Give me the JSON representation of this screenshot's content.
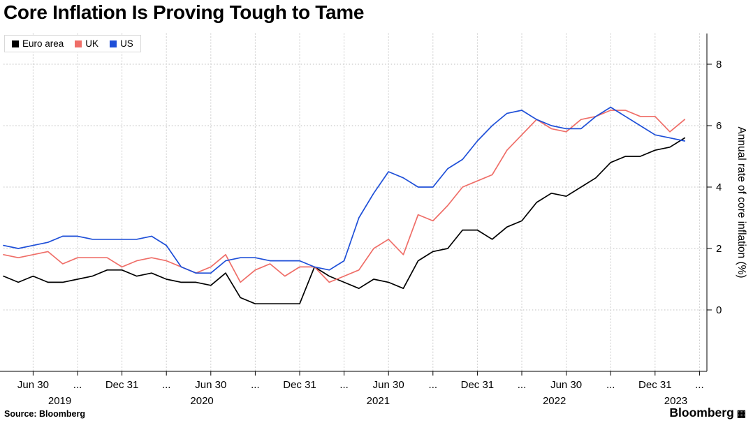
{
  "title": "Core Inflation Is Proving Tough to Tame",
  "footer": {
    "source": "Source: Bloomberg",
    "brand": "Bloomberg"
  },
  "chart_data": {
    "type": "line",
    "title": "Core Inflation Is Proving Tough to Tame",
    "ylabel": "Annual rate of core inflation (%)",
    "ylim": [
      -2,
      9
    ],
    "yticks": [
      0,
      2,
      4,
      6,
      8
    ],
    "x_start": "2019-04",
    "x_frequency": "monthly",
    "grid": "dotted",
    "legend_position": "top-left",
    "x_ticks": [
      {
        "pos": 2,
        "label": "Jun 30"
      },
      {
        "pos": 5,
        "label": "..."
      },
      {
        "pos": 8,
        "label": "Dec 31"
      },
      {
        "pos": 11,
        "label": "..."
      },
      {
        "pos": 14,
        "label": "Jun 30"
      },
      {
        "pos": 17,
        "label": "..."
      },
      {
        "pos": 20,
        "label": "Dec 31"
      },
      {
        "pos": 23,
        "label": "..."
      },
      {
        "pos": 26,
        "label": "Jun 30"
      },
      {
        "pos": 29,
        "label": "..."
      },
      {
        "pos": 32,
        "label": "Dec 31"
      },
      {
        "pos": 35,
        "label": "..."
      },
      {
        "pos": 38,
        "label": "Jun 30"
      },
      {
        "pos": 41,
        "label": "..."
      },
      {
        "pos": 44,
        "label": "Dec 31"
      },
      {
        "pos": 47,
        "label": "..."
      }
    ],
    "year_labels": [
      {
        "pos": 3.8,
        "label": "2019"
      },
      {
        "pos": 13.4,
        "label": "2020"
      },
      {
        "pos": 25.3,
        "label": "2021"
      },
      {
        "pos": 37.2,
        "label": "2022"
      },
      {
        "pos": 45.4,
        "label": "2023"
      }
    ],
    "series": [
      {
        "name": "Euro area",
        "color": "#000000",
        "values": [
          1.1,
          0.9,
          1.1,
          0.9,
          0.9,
          1.0,
          1.1,
          1.3,
          1.3,
          1.1,
          1.2,
          1.0,
          0.9,
          0.9,
          0.8,
          1.2,
          0.4,
          0.2,
          0.2,
          0.2,
          0.2,
          1.4,
          1.1,
          0.9,
          0.7,
          1.0,
          0.9,
          0.7,
          1.6,
          1.9,
          2.0,
          2.6,
          2.6,
          2.3,
          2.7,
          2.9,
          3.5,
          3.8,
          3.7,
          4.0,
          4.3,
          4.8,
          5.0,
          5.0,
          5.2,
          5.3,
          5.6
        ]
      },
      {
        "name": "UK",
        "color": "#ef6e68",
        "values": [
          1.8,
          1.7,
          1.8,
          1.9,
          1.5,
          1.7,
          1.7,
          1.7,
          1.4,
          1.6,
          1.7,
          1.6,
          1.4,
          1.2,
          1.4,
          1.8,
          0.9,
          1.3,
          1.5,
          1.1,
          1.4,
          1.4,
          0.9,
          1.1,
          1.3,
          2.0,
          2.3,
          1.8,
          3.1,
          2.9,
          3.4,
          4.0,
          4.2,
          4.4,
          5.2,
          5.7,
          6.2,
          5.9,
          5.8,
          6.2,
          6.3,
          6.5,
          6.5,
          6.3,
          6.3,
          5.8,
          6.2
        ]
      },
      {
        "name": "US",
        "color": "#1e4fd8",
        "values": [
          2.1,
          2.0,
          2.1,
          2.2,
          2.4,
          2.4,
          2.3,
          2.3,
          2.3,
          2.3,
          2.4,
          2.1,
          1.4,
          1.2,
          1.2,
          1.6,
          1.7,
          1.7,
          1.6,
          1.6,
          1.6,
          1.4,
          1.3,
          1.6,
          3.0,
          3.8,
          4.5,
          4.3,
          4.0,
          4.0,
          4.6,
          4.9,
          5.5,
          6.0,
          6.4,
          6.5,
          6.2,
          6.0,
          5.9,
          5.9,
          6.3,
          6.6,
          6.3,
          6.0,
          5.7,
          5.6,
          5.5
        ]
      }
    ]
  }
}
